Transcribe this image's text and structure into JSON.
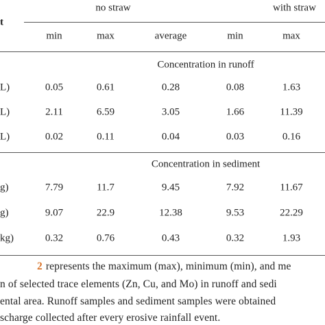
{
  "header": {
    "element": "t",
    "group1": "no straw",
    "group2": "with straw",
    "columns": [
      "min",
      "max",
      "average",
      "min",
      "max"
    ]
  },
  "table": {
    "sections": [
      {
        "title": "Concentration in runoff",
        "rows": [
          {
            "label": "L)",
            "cells": [
              "0.05",
              "0.61",
              "0.28",
              "0.08",
              "1.63"
            ]
          },
          {
            "label": "L)",
            "cells": [
              "2.11",
              "6.59",
              "3.05",
              "1.66",
              "11.39"
            ]
          },
          {
            "label": "L)",
            "cells": [
              "0.02",
              "0.11",
              "0.04",
              "0.03",
              "0.16"
            ]
          }
        ]
      },
      {
        "title": "Concentration in sediment",
        "rows": [
          {
            "label": "g)",
            "cells": [
              "7.79",
              "11.7",
              "9.45",
              "7.92",
              "11.67"
            ]
          },
          {
            "label": "g)",
            "cells": [
              "9.07",
              "22.9",
              "12.38",
              "9.53",
              "22.29"
            ]
          },
          {
            "label": "kg)",
            "cells": [
              "0.32",
              "0.76",
              "0.43",
              "0.32",
              "1.93"
            ]
          }
        ]
      }
    ]
  },
  "paragraph": {
    "ref": "2",
    "lines": [
      "represents the maximum (max), minimum (min), and me",
      "n of selected trace elements (Zn, Cu, and Mo) in runoff and sedi",
      "ental area. Runoff samples and sediment samples were obtained",
      "scharge collected after every erosive rainfall event."
    ]
  }
}
